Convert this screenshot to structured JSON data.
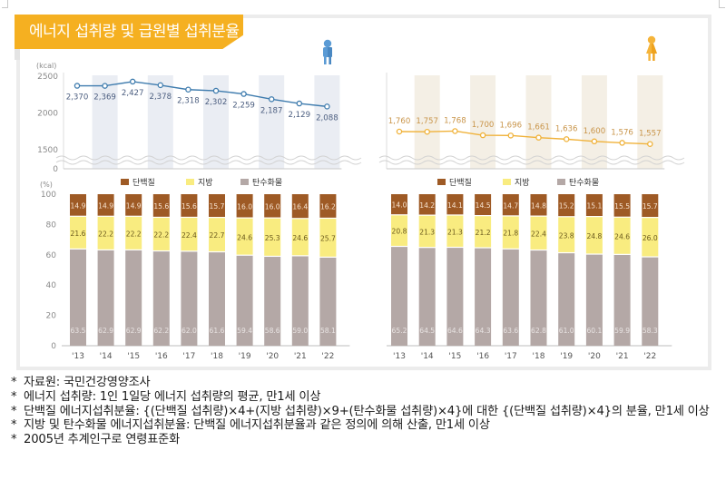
{
  "title": "에너지 섭취량 및 급원별 섭취분율",
  "icons": {
    "male": "male-person-icon",
    "female": "female-person-icon"
  },
  "colors": {
    "banner": "#f5b021",
    "male_line": "#3f7cae",
    "female_line": "#f0b23a",
    "protein": "#9e5a25",
    "fat": "#f9ec80",
    "carb": "#b4a8a6",
    "male_band": "#eaedf3",
    "female_band": "#f4efe5"
  },
  "chart_data": [
    {
      "type": "line",
      "name": "energy-intake-male",
      "unit_label": "(kcal)",
      "x": [
        "'13",
        "'14",
        "'15",
        "'16",
        "'17",
        "'18",
        "'19",
        "'20",
        "'21",
        "'22"
      ],
      "values": [
        2370,
        2369,
        2427,
        2378,
        2318,
        2302,
        2259,
        2187,
        2129,
        2088
      ],
      "value_labels": [
        "2,370",
        "2,369",
        "2,427",
        "2,378",
        "2,318",
        "2,302",
        "2,259",
        "2,187",
        "2,129",
        "2,088"
      ],
      "yticks": [
        "2500",
        "2000",
        "1500",
        "0"
      ],
      "ylim": [
        1500,
        2500
      ],
      "axis_break": true
    },
    {
      "type": "line",
      "name": "energy-intake-female",
      "unit_label": "",
      "x": [
        "'13",
        "'14",
        "'15",
        "'16",
        "'17",
        "'18",
        "'19",
        "'20",
        "'21",
        "'22"
      ],
      "values": [
        1760,
        1757,
        1768,
        1700,
        1696,
        1661,
        1636,
        1600,
        1576,
        1557
      ],
      "value_labels": [
        "1,760",
        "1,757",
        "1,768",
        "1,700",
        "1,696",
        "1,661",
        "1,636",
        "1,600",
        "1,576",
        "1,557"
      ],
      "yticks": [],
      "ylim": [
        1500,
        2500
      ],
      "axis_break": true
    },
    {
      "type": "bar",
      "stacked": true,
      "name": "energy-source-ratio-male",
      "unit_label": "(%)",
      "categories": [
        "'13",
        "'14",
        "'15",
        "'16",
        "'17",
        "'18",
        "'19",
        "'20",
        "'21",
        "'22"
      ],
      "yticks": [
        "100",
        "80",
        "60",
        "40",
        "20",
        "0"
      ],
      "ylim": [
        0,
        100
      ],
      "legend": [
        "단백질",
        "지방",
        "탄수화물"
      ],
      "series": [
        {
          "name": "탄수화물",
          "values": [
            63.5,
            62.9,
            62.9,
            62.2,
            62.0,
            61.6,
            59.4,
            58.6,
            59.0,
            58.1
          ],
          "labels": [
            "63.5",
            "62.9",
            "62.9",
            "62.2",
            "62.0",
            "61.6",
            "59.4",
            "58.6",
            "59.0",
            "58.1"
          ]
        },
        {
          "name": "지방",
          "values": [
            21.6,
            22.2,
            22.2,
            22.2,
            22.4,
            22.7,
            24.6,
            25.3,
            24.6,
            25.7
          ],
          "labels": [
            "21.6",
            "22.2",
            "22.2",
            "22.2",
            "22.4",
            "22.7",
            "24.6",
            "25.3",
            "24.6",
            "25.7"
          ]
        },
        {
          "name": "단백질",
          "values": [
            14.9,
            14.9,
            14.9,
            15.6,
            15.6,
            15.7,
            16.0,
            16.0,
            16.4,
            16.2
          ],
          "labels": [
            "14.9",
            "14.9",
            "14.9",
            "15.6",
            "15.6",
            "15.7",
            "16.0",
            "16.0",
            "16.4",
            "16.2"
          ]
        }
      ]
    },
    {
      "type": "bar",
      "stacked": true,
      "name": "energy-source-ratio-female",
      "unit_label": "",
      "categories": [
        "'13",
        "'14",
        "'15",
        "'16",
        "'17",
        "'18",
        "'19",
        "'20",
        "'21",
        "'22"
      ],
      "yticks": [],
      "ylim": [
        0,
        100
      ],
      "legend": [
        "단백질",
        "지방",
        "탄수화물"
      ],
      "series": [
        {
          "name": "탄수화물",
          "values": [
            65.2,
            64.5,
            64.6,
            64.3,
            63.6,
            62.8,
            61.0,
            60.1,
            59.9,
            58.3
          ],
          "labels": [
            "65.2",
            "64.5",
            "64.6",
            "64.3",
            "63.6",
            "62.8",
            "61.0",
            "60.1",
            "59.9",
            "58.3"
          ]
        },
        {
          "name": "지방",
          "values": [
            20.8,
            21.3,
            21.3,
            21.2,
            21.8,
            22.4,
            23.8,
            24.8,
            24.6,
            26.0
          ],
          "labels": [
            "20.8",
            "21.3",
            "21.3",
            "21.2",
            "21.8",
            "22.4",
            "23.8",
            "24.8",
            "24.6",
            "26.0"
          ]
        },
        {
          "name": "단백질",
          "values": [
            14.0,
            14.2,
            14.1,
            14.5,
            14.7,
            14.8,
            15.2,
            15.1,
            15.5,
            15.7
          ],
          "labels": [
            "14.0",
            "14.2",
            "14.1",
            "14.5",
            "14.7",
            "14.8",
            "15.2",
            "15.1",
            "15.5",
            "15.7"
          ]
        }
      ]
    }
  ],
  "notes": [
    {
      "bullet": "*",
      "text": "자료원: 국민건강영양조사"
    },
    {
      "bullet": "*",
      "text": "에너지 섭취량: 1인 1일당 에너지 섭취량의 평균, 만1세 이상"
    },
    {
      "bullet": "*",
      "text": "단백질 에너지섭취분율: {(단백질 섭취량)×4+(지방 섭취량)×9+(탄수화물 섭취량)×4}에 대한 {(단백질 섭취량)×4}의 분율, 만1세 이상"
    },
    {
      "bullet": "*",
      "text": "지방 및 탄수화물 에너지섭취분율: 단백질 에너지섭취분율과 같은 정의에 의해 산출, 만1세 이상"
    },
    {
      "bullet": "*",
      "text": "2005년 추계인구로 연령표준화"
    }
  ]
}
